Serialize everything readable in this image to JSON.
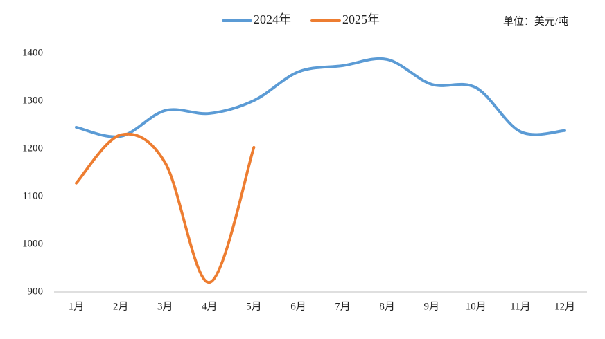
{
  "chart_data": {
    "type": "line",
    "unit": "单位：美元/吨",
    "categories": [
      "1月",
      "2月",
      "3月",
      "4月",
      "5月",
      "6月",
      "7月",
      "8月",
      "9月",
      "10月",
      "11月",
      "12月"
    ],
    "series": [
      {
        "name": "2024年",
        "color": "#5b9bd5",
        "values": [
          1245,
          1226,
          1280,
          1274,
          1301,
          1361,
          1374,
          1387,
          1335,
          1328,
          1236,
          1238
        ]
      },
      {
        "name": "2025年",
        "color": "#ed7d31",
        "values": [
          1128,
          1229,
          1171,
          920,
          1203,
          null,
          null,
          null,
          null,
          null,
          null,
          null
        ]
      }
    ],
    "ylim": [
      900,
      1400
    ],
    "yticks": [
      900,
      1000,
      1100,
      1200,
      1300,
      1400
    ],
    "legend": "top"
  }
}
